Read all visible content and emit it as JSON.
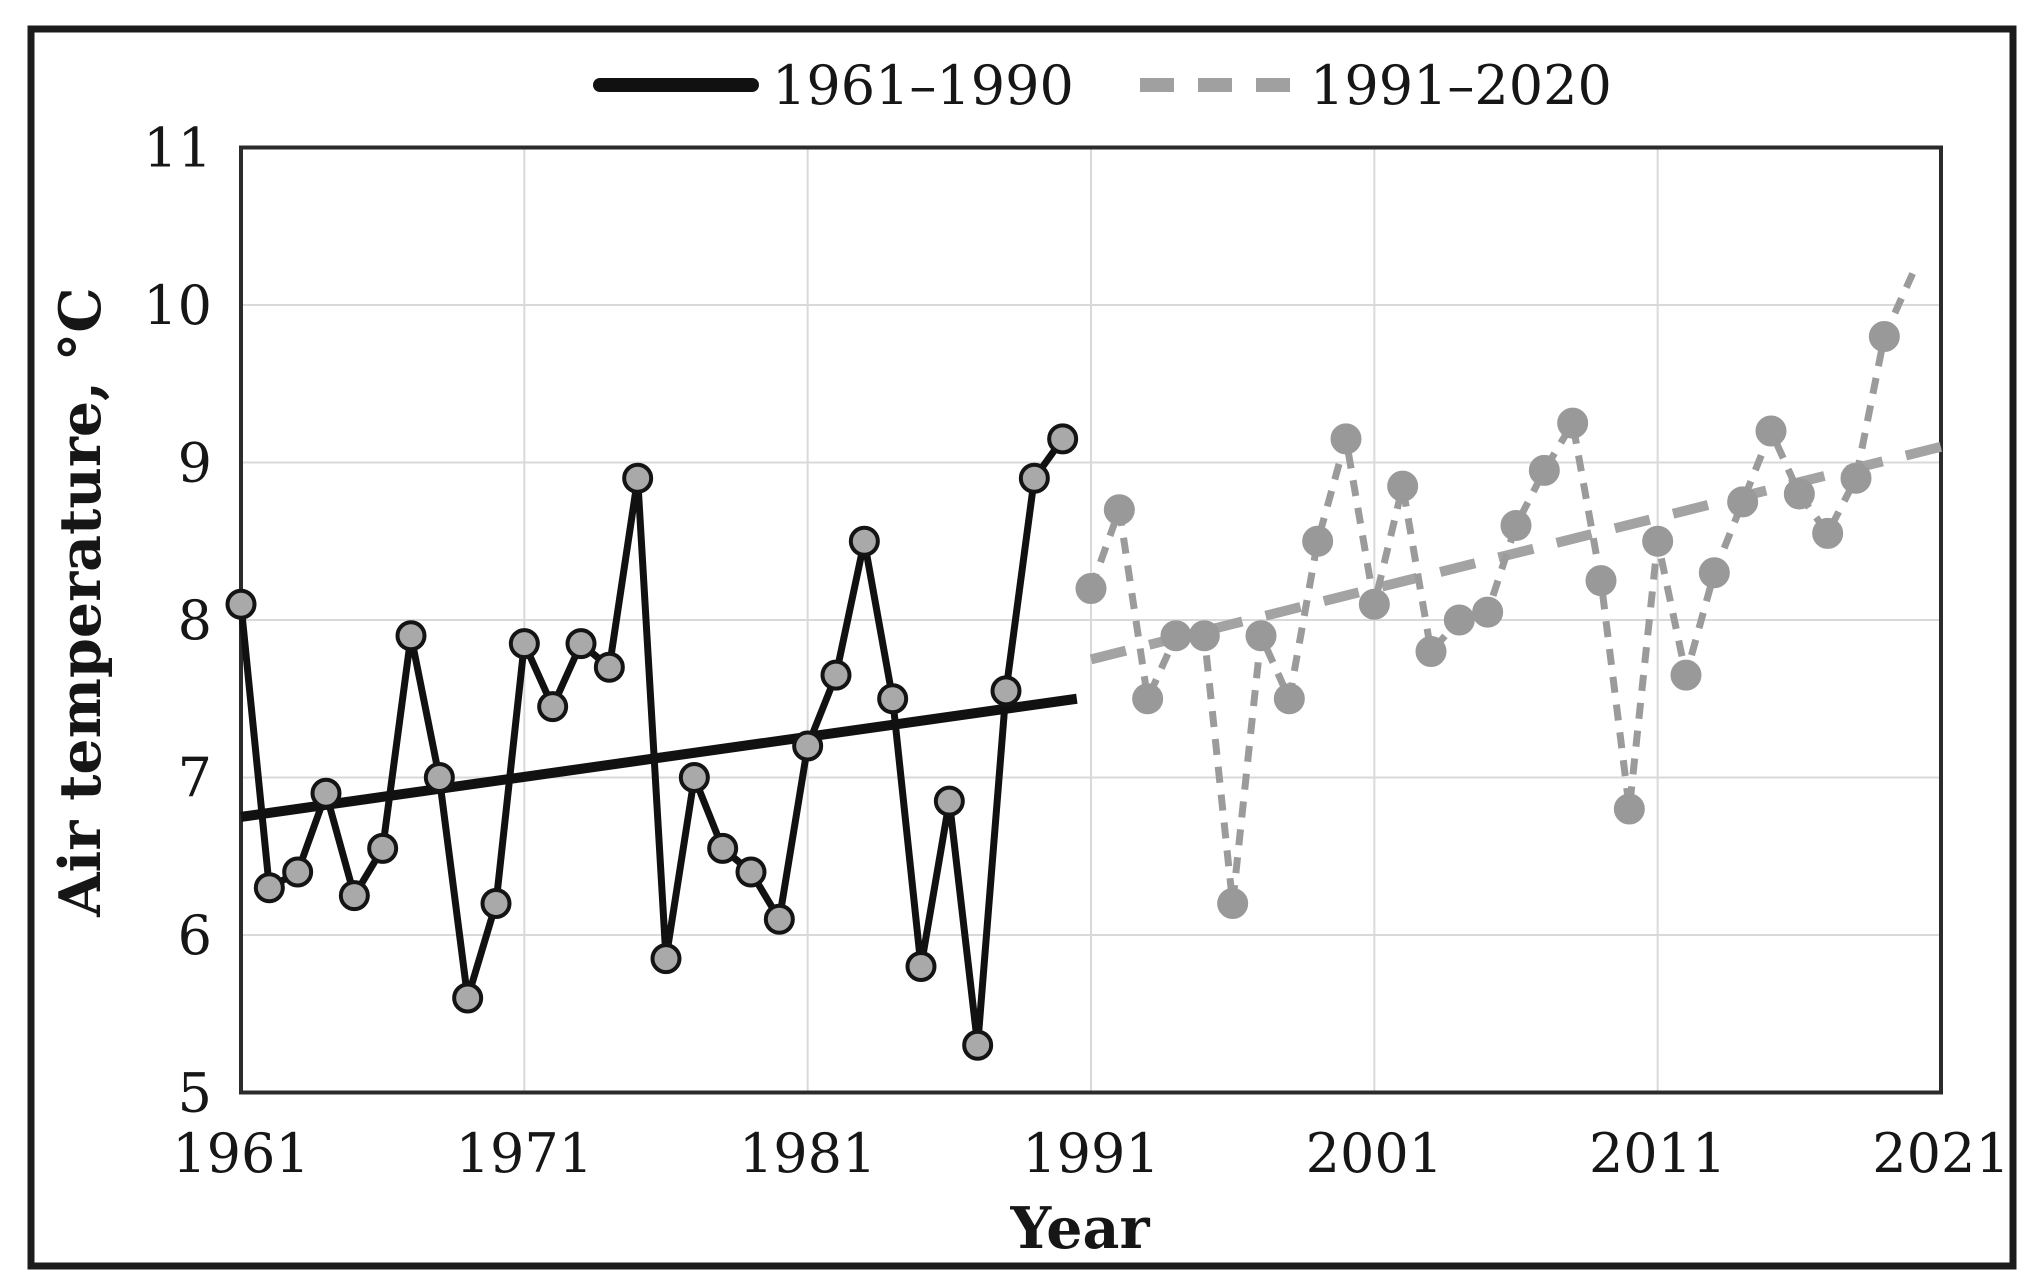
{
  "figure": {
    "background": "#ffffff",
    "border_color": "#1c1c1c",
    "plot_border_color": "#2b2b2b",
    "gridline_color": "#d9d9d9"
  },
  "legend": {
    "items": [
      {
        "label": "1961–1990",
        "swatch": "solid-black-line",
        "color": "#111111"
      },
      {
        "label": "1991–2020",
        "swatch": "dashed-gray-line",
        "color": "#a0a0a0"
      }
    ]
  },
  "chart_data": {
    "type": "line",
    "title": "",
    "xlabel": "Year",
    "ylabel": "Air temperature, °C",
    "xlim": [
      1961,
      2021
    ],
    "ylim": [
      5,
      11
    ],
    "x_ticks": [
      1961,
      1971,
      1981,
      1991,
      2001,
      2011,
      2021
    ],
    "y_ticks": [
      5,
      6,
      7,
      8,
      9,
      10,
      11
    ],
    "grid": true,
    "legend_position": "top",
    "series": [
      {
        "name": "1961–1990",
        "style": "solid",
        "color": "#111111",
        "marker_fill": "#a9a9a9",
        "marker_stroke": "#141414",
        "end_marker": true,
        "x_start": 1961,
        "x": [
          1961,
          1962,
          1963,
          1964,
          1965,
          1966,
          1967,
          1968,
          1969,
          1970,
          1971,
          1972,
          1973,
          1974,
          1975,
          1976,
          1977,
          1978,
          1979,
          1980,
          1981,
          1982,
          1983,
          1984,
          1985,
          1986,
          1987,
          1988,
          1989,
          1990
        ],
        "values": [
          8.1,
          6.3,
          6.4,
          6.9,
          6.25,
          6.55,
          7.9,
          7.0,
          5.6,
          6.2,
          7.85,
          7.45,
          7.85,
          7.7,
          8.9,
          5.85,
          7.0,
          6.55,
          6.4,
          6.1,
          7.2,
          7.65,
          8.5,
          7.5,
          5.8,
          6.85,
          5.3,
          7.55,
          8.9,
          9.15
        ]
      },
      {
        "name": "1991–2020",
        "style": "dashed",
        "color": "#9b9b9b",
        "marker_fill": "#999999",
        "marker_stroke": "#999999",
        "end_marker": false,
        "x_start": 1991,
        "x": [
          1991,
          1992,
          1993,
          1994,
          1995,
          1996,
          1997,
          1998,
          1999,
          2000,
          2001,
          2002,
          2003,
          2004,
          2005,
          2006,
          2007,
          2008,
          2009,
          2010,
          2011,
          2012,
          2013,
          2014,
          2015,
          2016,
          2017,
          2018,
          2019,
          2020
        ],
        "values": [
          8.2,
          8.7,
          7.5,
          7.9,
          7.9,
          6.2,
          7.9,
          7.5,
          8.5,
          9.15,
          8.1,
          8.85,
          7.8,
          8.0,
          8.05,
          8.6,
          8.95,
          9.25,
          8.25,
          6.8,
          8.5,
          7.65,
          8.3,
          8.75,
          9.2,
          8.8,
          8.55,
          8.9,
          9.8,
          10.2
        ]
      }
    ],
    "trendlines": [
      {
        "series": "1961–1990",
        "style": "solid",
        "color": "#111111",
        "x": [
          1961,
          1990.5
        ],
        "values": [
          6.75,
          7.5
        ]
      },
      {
        "series": "1991–2020",
        "style": "dashed",
        "color": "#a3a3a3",
        "x": [
          1991,
          2021
        ],
        "values": [
          7.75,
          9.1
        ]
      }
    ]
  }
}
